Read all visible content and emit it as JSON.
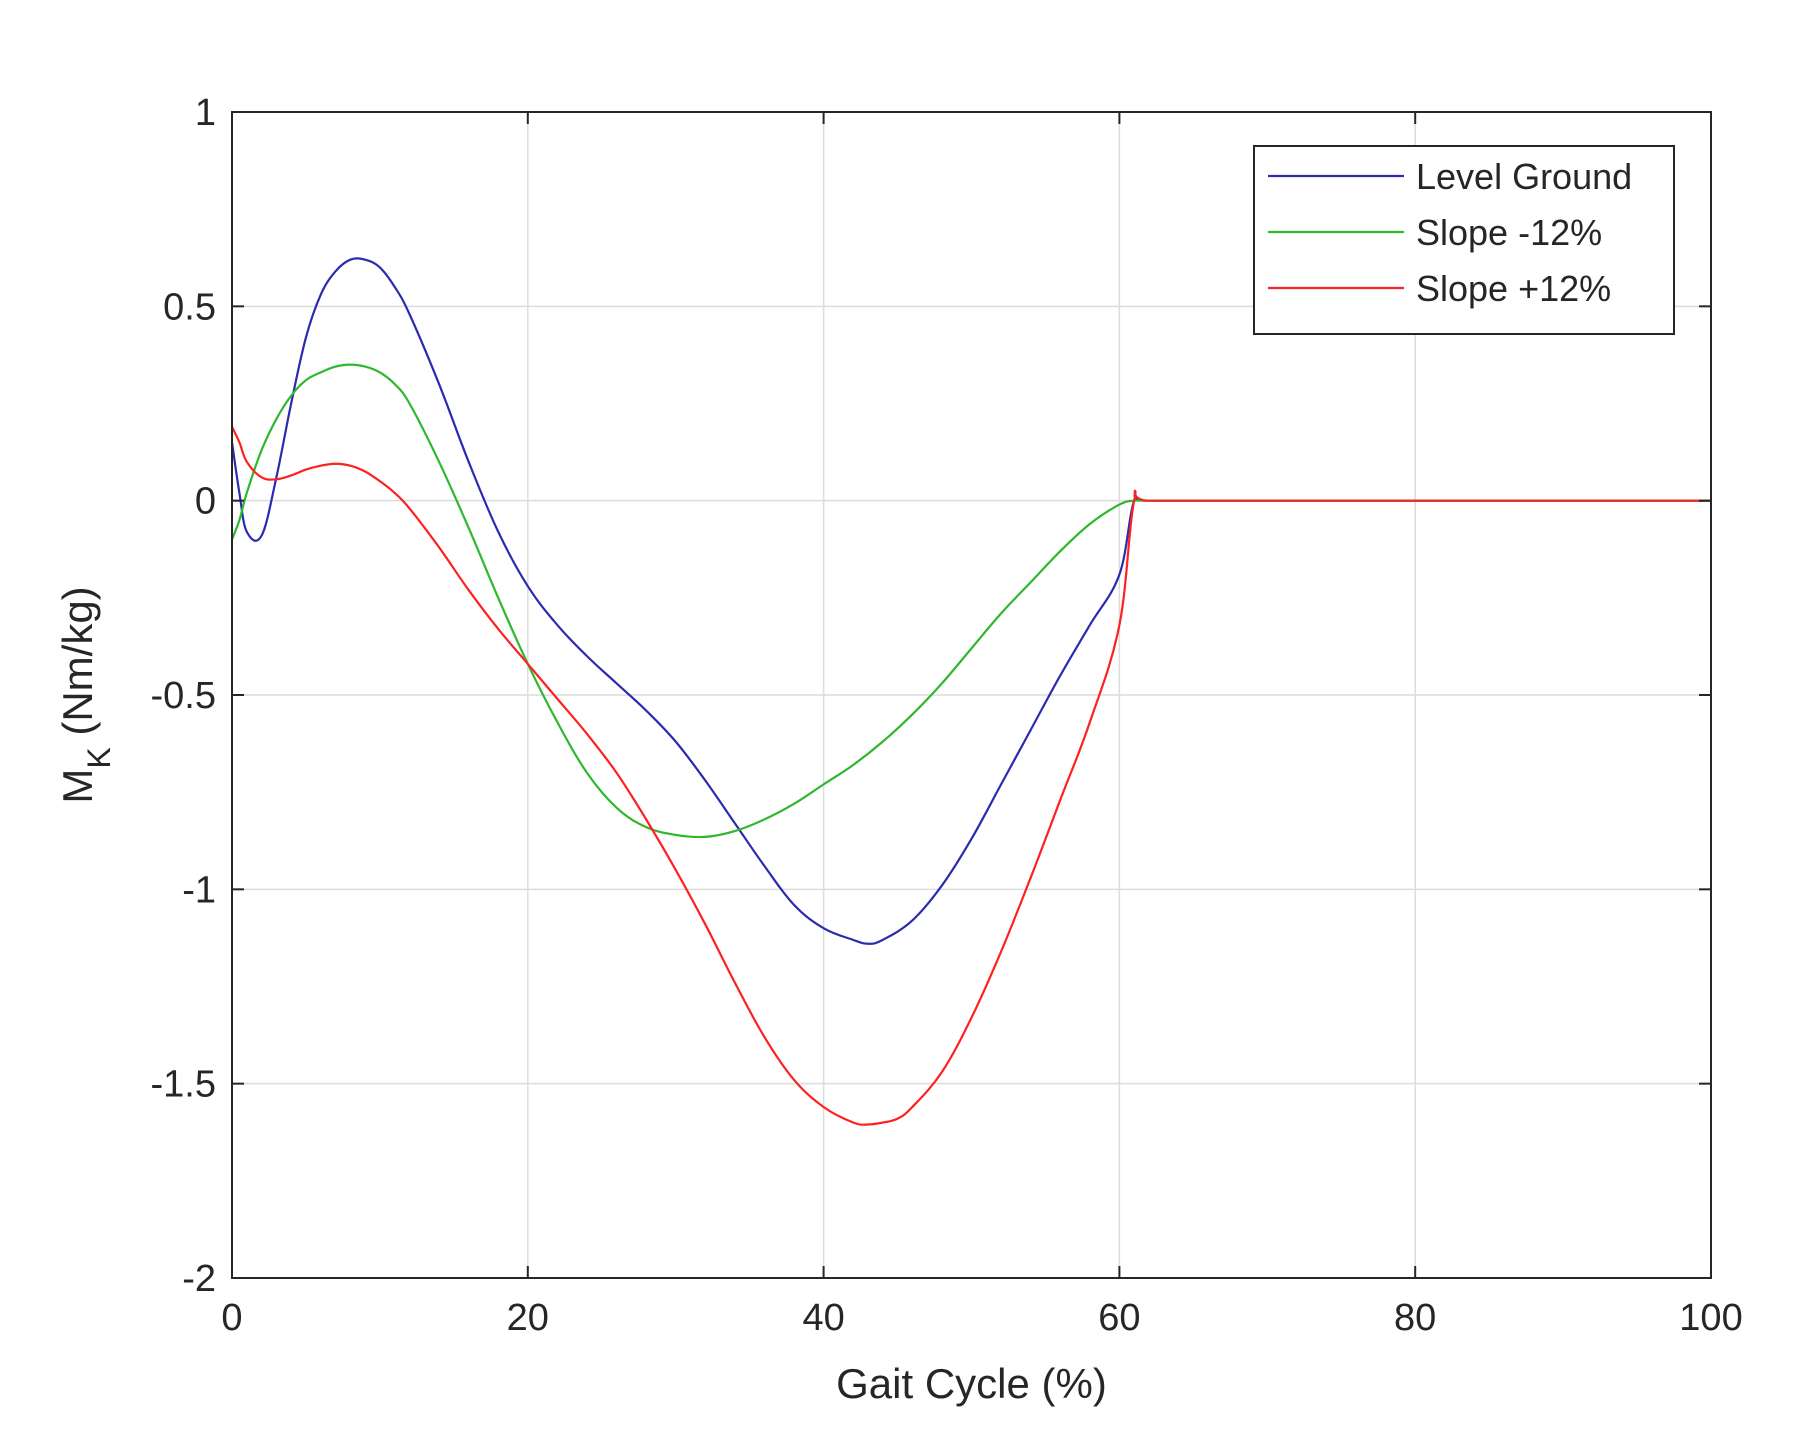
{
  "chart_data": {
    "type": "line",
    "title": "",
    "xlabel": "Gait Cycle (%)",
    "ylabel": {
      "main": "M",
      "subscript": "K",
      "unit": " (Nm/kg)"
    },
    "xlim": [
      0,
      100
    ],
    "ylim": [
      -2,
      1
    ],
    "xticks": [
      0,
      20,
      40,
      60,
      80,
      100
    ],
    "yticks": [
      1,
      0.5,
      0,
      -0.5,
      -1,
      -1.5,
      -2
    ],
    "xtick_labels": [
      "0",
      "20",
      "40",
      "60",
      "80",
      "100"
    ],
    "ytick_labels": [
      "1",
      "0.5",
      "0",
      "-0.5",
      "-1",
      "-1.5",
      "-2"
    ],
    "grid": true,
    "legend_position": "top-right",
    "series": [
      {
        "name": "Level Ground",
        "color": "#2b2bb0",
        "x": [
          0,
          0.5,
          1,
          2,
          3,
          4,
          5,
          6,
          7,
          8,
          9,
          10,
          11,
          12,
          14,
          16,
          18,
          20,
          22,
          24,
          26,
          28,
          30,
          32,
          34,
          36,
          38,
          40,
          42,
          43,
          44,
          46,
          48,
          50,
          52,
          54,
          56,
          58,
          60,
          61,
          62,
          70,
          80,
          90,
          100
        ],
        "y": [
          0.15,
          0.02,
          -0.08,
          -0.09,
          0.06,
          0.25,
          0.42,
          0.53,
          0.59,
          0.62,
          0.62,
          0.6,
          0.55,
          0.48,
          0.3,
          0.1,
          -0.08,
          -0.22,
          -0.32,
          -0.4,
          -0.47,
          -0.54,
          -0.62,
          -0.72,
          -0.83,
          -0.94,
          -1.04,
          -1.1,
          -1.13,
          -1.14,
          -1.13,
          -1.08,
          -0.99,
          -0.87,
          -0.73,
          -0.59,
          -0.45,
          -0.32,
          -0.19,
          0,
          0,
          0,
          0,
          0,
          0
        ]
      },
      {
        "name": "Slope -12%",
        "color": "#2eb82e",
        "x": [
          0,
          0.5,
          1,
          2,
          3,
          4,
          5,
          6,
          7,
          8,
          9,
          10,
          11,
          12,
          14,
          16,
          18,
          20,
          22,
          24,
          26,
          28,
          30,
          32,
          34,
          36,
          38,
          40,
          42,
          44,
          46,
          48,
          50,
          52,
          54,
          56,
          58,
          60,
          61,
          62,
          70,
          80,
          90,
          100
        ],
        "y": [
          -0.1,
          -0.05,
          0.02,
          0.13,
          0.21,
          0.27,
          0.31,
          0.33,
          0.345,
          0.35,
          0.345,
          0.33,
          0.3,
          0.25,
          0.1,
          -0.07,
          -0.25,
          -0.42,
          -0.57,
          -0.7,
          -0.79,
          -0.84,
          -0.86,
          -0.865,
          -0.85,
          -0.82,
          -0.78,
          -0.73,
          -0.68,
          -0.62,
          -0.55,
          -0.47,
          -0.38,
          -0.29,
          -0.21,
          -0.13,
          -0.06,
          -0.01,
          0,
          0,
          0,
          0,
          0,
          0
        ]
      },
      {
        "name": "Slope +12%",
        "color": "#ff2020",
        "x": [
          0,
          0.5,
          1,
          2,
          3,
          4,
          5,
          6,
          7,
          8,
          9,
          10,
          11,
          12,
          14,
          16,
          18,
          20,
          22,
          24,
          26,
          28,
          30,
          32,
          34,
          36,
          38,
          40,
          42,
          43,
          44,
          45,
          46,
          48,
          50,
          52,
          54,
          56,
          58,
          60,
          61,
          62,
          70,
          80,
          90,
          100
        ],
        "y": [
          0.19,
          0.15,
          0.1,
          0.06,
          0.055,
          0.065,
          0.08,
          0.09,
          0.095,
          0.09,
          0.075,
          0.05,
          0.02,
          -0.02,
          -0.12,
          -0.23,
          -0.33,
          -0.42,
          -0.51,
          -0.6,
          -0.7,
          -0.82,
          -0.95,
          -1.09,
          -1.24,
          -1.38,
          -1.49,
          -1.56,
          -1.6,
          -1.605,
          -1.6,
          -1.59,
          -1.56,
          -1.47,
          -1.33,
          -1.16,
          -0.97,
          -0.77,
          -0.57,
          -0.32,
          0,
          0,
          0,
          0,
          0,
          0
        ]
      }
    ]
  }
}
